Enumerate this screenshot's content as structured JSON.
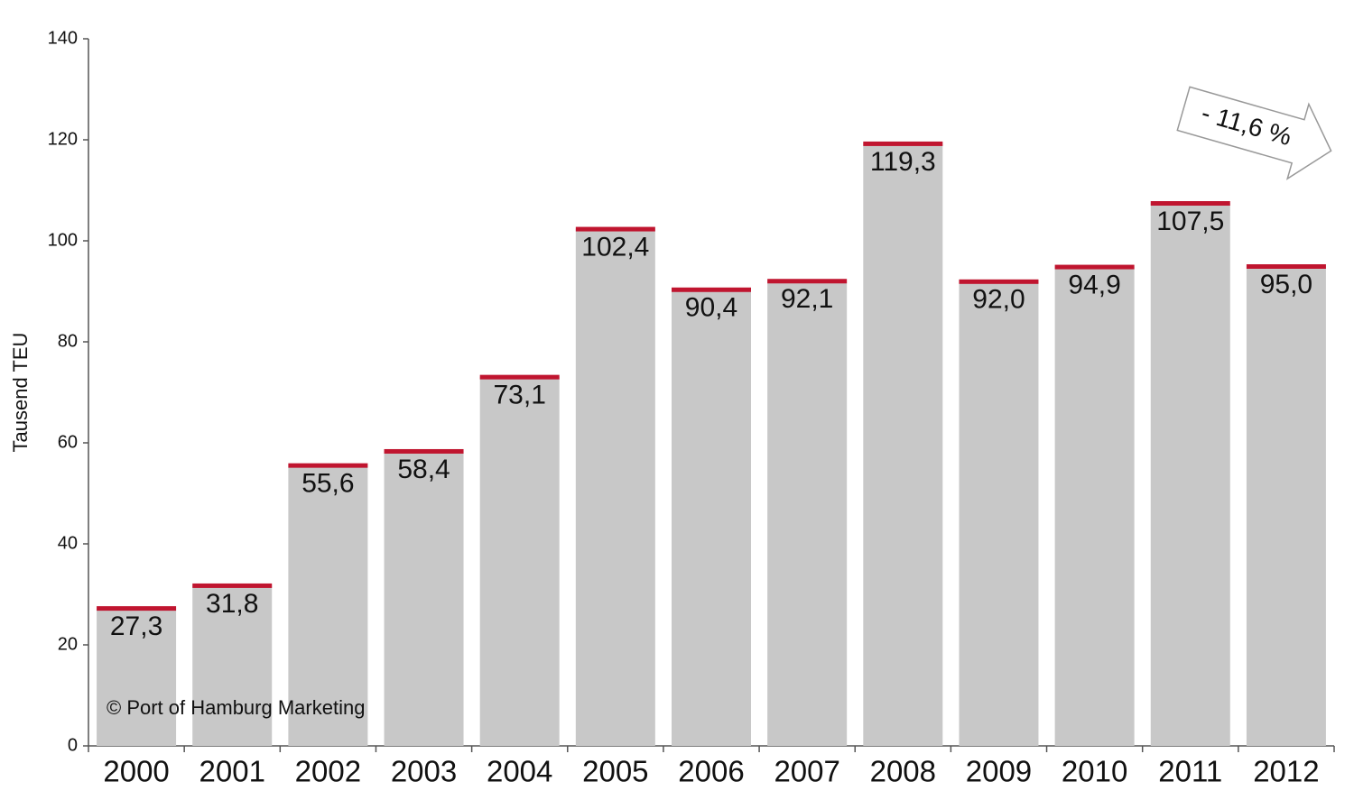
{
  "chart_data": {
    "type": "bar",
    "y_label": "Tausend TEU",
    "categories": [
      "2000",
      "2001",
      "2002",
      "2003",
      "2004",
      "2005",
      "2006",
      "2007",
      "2008",
      "2009",
      "2010",
      "2011",
      "2012"
    ],
    "values": [
      27.3,
      31.8,
      55.6,
      58.4,
      73.1,
      102.4,
      90.4,
      92.1,
      119.3,
      92.0,
      94.9,
      107.5,
      95.0
    ],
    "value_labels": [
      "27,3",
      "31,8",
      "55,6",
      "58,4",
      "73,1",
      "102,4",
      "90,4",
      "92,1",
      "119,3",
      "92,0",
      "94,9",
      "107,5",
      "95,0"
    ],
    "color": "#c8c8c8",
    "cap_color": "#c0152f",
    "ylim": [
      0,
      140
    ],
    "yticks": [
      0,
      20,
      40,
      60,
      80,
      100,
      120,
      140
    ],
    "annotation": "- 11,6 %",
    "source": "© Port of Hamburg Marketing"
  }
}
